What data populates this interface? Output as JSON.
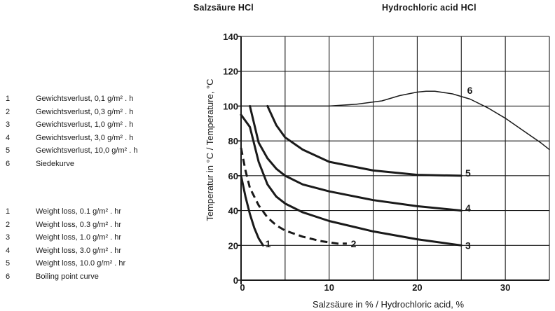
{
  "titles": {
    "german": "Salzsäure  HCl",
    "english": "Hydrochloric  acid  HCl"
  },
  "legend_german": [
    {
      "num": "1",
      "text": "Gewichtsverlust, 0,1 g/m² . h"
    },
    {
      "num": "2",
      "text": "Gewichtsverlust, 0,3 g/m² . h"
    },
    {
      "num": "3",
      "text": "Gewichtsverlust, 1,0 g/m² . h"
    },
    {
      "num": "4",
      "text": "Gewichtsverlust, 3,0 g/m² . h"
    },
    {
      "num": "5",
      "text": "Gewichtsverlust, 10,0 g/m² . h"
    },
    {
      "num": "6",
      "text": "Siedekurve"
    }
  ],
  "legend_english": [
    {
      "num": "1",
      "text": "Weight loss, 0.1 g/m² . hr"
    },
    {
      "num": "2",
      "text": "Weight loss, 0.3 g/m² . hr"
    },
    {
      "num": "3",
      "text": "Weight loss, 1.0 g/m² . hr"
    },
    {
      "num": "4",
      "text": "Weight loss, 3.0 g/m² . hr"
    },
    {
      "num": "5",
      "text": "Weight loss, 10.0 g/m² . hr"
    },
    {
      "num": "6",
      "text": "Boiling point curve"
    }
  ],
  "chart_data": {
    "type": "line",
    "xlabel": "Salzsäure in % / Hydrochloric acid, %",
    "ylabel": "Temperatur in °C / Temperature, °C",
    "xlim": [
      0,
      35
    ],
    "ylim": [
      0,
      140
    ],
    "x_ticks": [
      0,
      10,
      20,
      30
    ],
    "y_ticks": [
      0,
      20,
      40,
      60,
      80,
      100,
      120,
      140
    ],
    "grid": true,
    "series": [
      {
        "name": "1",
        "dashed": false,
        "label_at": [
          2.6,
          21
        ],
        "points": [
          [
            0,
            60
          ],
          [
            0.5,
            48
          ],
          [
            1.0,
            38
          ],
          [
            1.5,
            30
          ],
          [
            2.0,
            24
          ],
          [
            2.5,
            20
          ]
        ]
      },
      {
        "name": "2",
        "dashed": true,
        "label_at": [
          12.3,
          21
        ],
        "points": [
          [
            0,
            76
          ],
          [
            0.5,
            63
          ],
          [
            1,
            53
          ],
          [
            2,
            43
          ],
          [
            3,
            36
          ],
          [
            4,
            31.5
          ],
          [
            5,
            28.5
          ],
          [
            7,
            25
          ],
          [
            9,
            22.5
          ],
          [
            11,
            21
          ],
          [
            12,
            21
          ]
        ]
      },
      {
        "name": "3",
        "dashed": false,
        "label_at": [
          25.3,
          20
        ],
        "points": [
          [
            0,
            95
          ],
          [
            1,
            88
          ],
          [
            2,
            68
          ],
          [
            3,
            55
          ],
          [
            4,
            48
          ],
          [
            5,
            44
          ],
          [
            7,
            39
          ],
          [
            10,
            34
          ],
          [
            15,
            28
          ],
          [
            20,
            23.5
          ],
          [
            25,
            20
          ]
        ]
      },
      {
        "name": "4",
        "dashed": false,
        "label_at": [
          25.3,
          41.5
        ],
        "points": [
          [
            1,
            100
          ],
          [
            2,
            79
          ],
          [
            3,
            70
          ],
          [
            4,
            64
          ],
          [
            5,
            60
          ],
          [
            7,
            55
          ],
          [
            10,
            51
          ],
          [
            15,
            46
          ],
          [
            20,
            42.5
          ],
          [
            25,
            40
          ]
        ]
      },
      {
        "name": "5",
        "dashed": false,
        "label_at": [
          25.3,
          61.5
        ],
        "points": [
          [
            3,
            100
          ],
          [
            4,
            89
          ],
          [
            5,
            82
          ],
          [
            7,
            75
          ],
          [
            10,
            68
          ],
          [
            15,
            63
          ],
          [
            20,
            60.5
          ],
          [
            25,
            60
          ]
        ]
      },
      {
        "name": "6",
        "dashed": false,
        "label_at": [
          25.5,
          109
        ],
        "points": [
          [
            0,
            100
          ],
          [
            5,
            100
          ],
          [
            10,
            100
          ],
          [
            13,
            101
          ],
          [
            16,
            103
          ],
          [
            18,
            106
          ],
          [
            20,
            108
          ],
          [
            21,
            108.5
          ],
          [
            22,
            108.5
          ],
          [
            24,
            107
          ],
          [
            26,
            104
          ],
          [
            28,
            99
          ],
          [
            30,
            93
          ],
          [
            32,
            86
          ],
          [
            34,
            79
          ],
          [
            35,
            75
          ]
        ]
      }
    ]
  }
}
